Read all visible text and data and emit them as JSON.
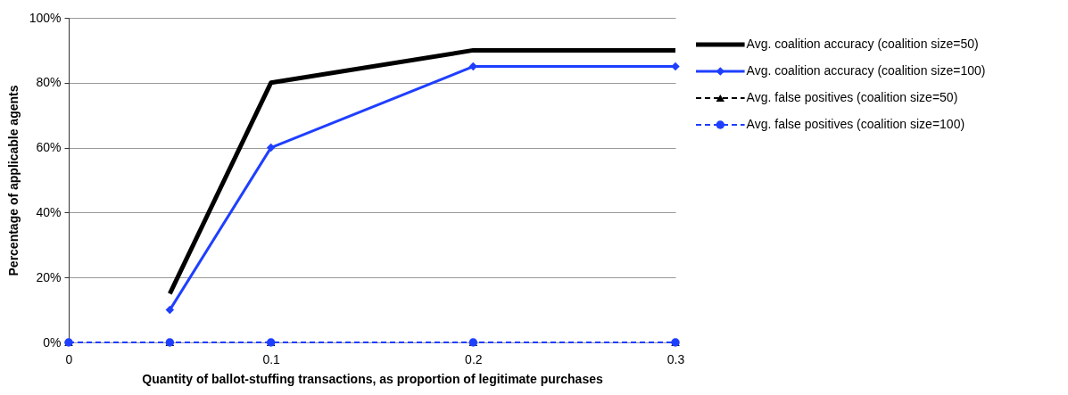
{
  "chart_data": {
    "type": "line",
    "xlabel": "Quantity of ballot-stuffing transactions, as proportion of legitimate purchases",
    "ylabel": "Percentage of applicable agents",
    "xlim": [
      0,
      0.3
    ],
    "xticks": [
      0,
      0.1,
      0.2,
      0.3
    ],
    "ylim": [
      0,
      100
    ],
    "yticks": [
      {
        "value": 0,
        "label": "0%"
      },
      {
        "value": 20,
        "label": "20%"
      },
      {
        "value": 40,
        "label": "40%"
      },
      {
        "value": 60,
        "label": "60%"
      },
      {
        "value": 80,
        "label": "80%"
      },
      {
        "value": 100,
        "label": "100%"
      }
    ],
    "grid": "y",
    "legend": "right",
    "series": [
      {
        "name": "Avg. coalition accuracy (coalition size=50)",
        "color": "#000000",
        "marker": "none",
        "line_style": "solid",
        "x": [
          0.05,
          0.1,
          0.2,
          0.3
        ],
        "values": [
          15,
          80,
          90,
          90
        ]
      },
      {
        "name": "Avg. coalition accuracy (coalition size=100)",
        "color": "#1f3fff",
        "marker": "diamond",
        "line_style": "solid",
        "x": [
          0.05,
          0.1,
          0.2,
          0.3
        ],
        "values": [
          10,
          60,
          85,
          85
        ]
      },
      {
        "name": "Avg. false positives (coalition size=50)",
        "color": "#000000",
        "marker": "triangle",
        "line_style": "dashed",
        "x": [
          0,
          0.05,
          0.1,
          0.2,
          0.3
        ],
        "values": [
          0,
          0,
          0,
          0,
          0
        ]
      },
      {
        "name": "Avg. false positives (coalition size=100)",
        "color": "#1f3fff",
        "marker": "circle",
        "line_style": "dashed",
        "x": [
          0,
          0.05,
          0.1,
          0.2,
          0.3
        ],
        "values": [
          0,
          0,
          0,
          0,
          0
        ]
      }
    ]
  }
}
